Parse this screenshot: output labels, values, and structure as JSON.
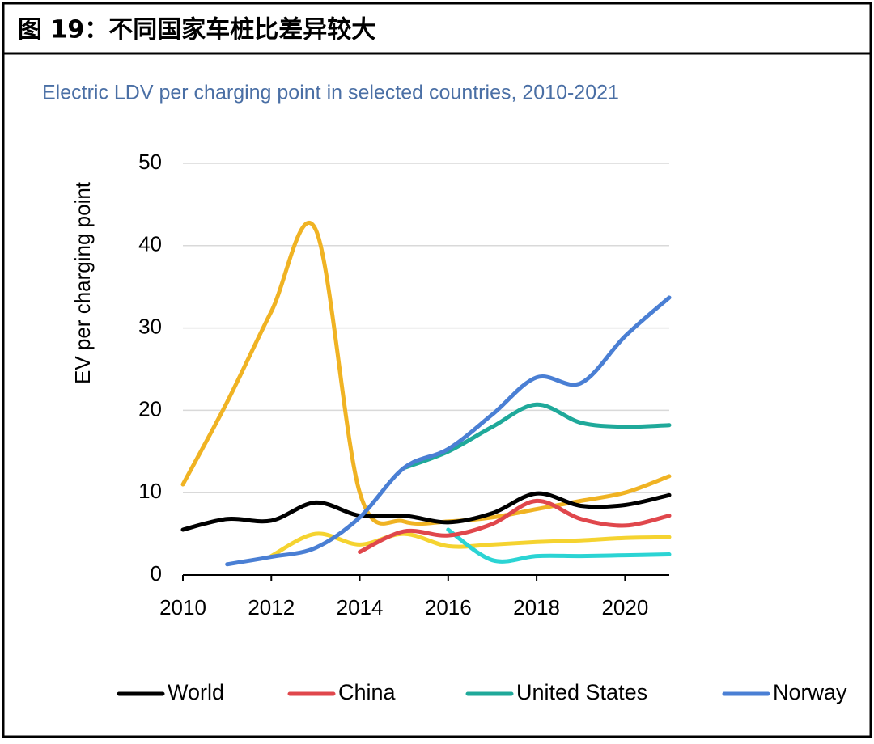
{
  "chart_data": {
    "type": "line",
    "title": "图 19：不同国家车桩比差异较大",
    "subtitle": "Electric LDV per charging point in selected countries, 2010-2021",
    "ylabel": "EV per charging point",
    "x": [
      2010,
      2011,
      2012,
      2013,
      2014,
      2015,
      2016,
      2017,
      2018,
      2019,
      2020,
      2021
    ],
    "xlim": [
      2010,
      2021
    ],
    "xticks": [
      2010,
      2012,
      2014,
      2016,
      2018,
      2020
    ],
    "ylim": [
      0,
      50
    ],
    "yticks": [
      0,
      10,
      20,
      30,
      40,
      50
    ],
    "grid": true,
    "series": [
      {
        "color": "#f0b323",
        "values": [
          11,
          21,
          32,
          42,
          10,
          6.5,
          6.5,
          7,
          8,
          9,
          10,
          12
        ]
      },
      {
        "color": "#f5d330",
        "values": [
          null,
          null,
          2.3,
          5,
          3.7,
          5,
          3.5,
          3.7,
          4,
          4.2,
          4.5,
          4.6
        ]
      },
      {
        "color": "#2bd4d4",
        "values": [
          null,
          null,
          null,
          null,
          null,
          null,
          5.5,
          1.8,
          2.3,
          2.3,
          2.4,
          2.5
        ]
      },
      {
        "name": "World",
        "color": "#000000",
        "values": [
          5.5,
          6.8,
          6.6,
          8.8,
          7.2,
          7.2,
          6.4,
          7.5,
          9.9,
          8.4,
          8.5,
          9.7
        ]
      },
      {
        "name": "China",
        "color": "#e0474c",
        "values": [
          null,
          null,
          null,
          null,
          2.8,
          5.3,
          4.8,
          6.2,
          9,
          6.8,
          6,
          7.2
        ]
      },
      {
        "name": "United States",
        "color": "#1fa99a",
        "values": [
          null,
          null,
          null,
          null,
          null,
          13,
          15,
          18,
          20.7,
          18.5,
          18,
          18.2
        ]
      },
      {
        "name": "Norway",
        "color": "#4a7fd4",
        "values": [
          null,
          1.3,
          2.2,
          3.3,
          7,
          13,
          15.3,
          19.5,
          24,
          23.3,
          29,
          33.7
        ]
      }
    ]
  }
}
